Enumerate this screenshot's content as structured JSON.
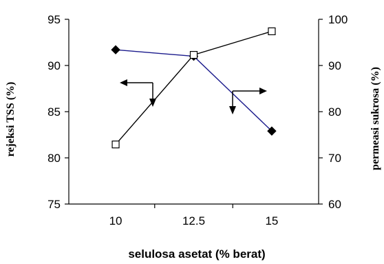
{
  "chart_data": {
    "type": "line",
    "title": "",
    "xlabel": "selulosa asetat (% berat)",
    "x": [
      10,
      12.5,
      15
    ],
    "x_tick_labels": [
      "10",
      "12.5",
      "15"
    ],
    "y_left": {
      "label": "rejeksi TSS (%)",
      "ylim": [
        75,
        95
      ],
      "ticks": [
        "75",
        "80",
        "85",
        "90",
        "95"
      ]
    },
    "y_right": {
      "label": "permeasi sukrosa (%)",
      "ylim": [
        60,
        100
      ],
      "ticks": [
        "60",
        "70",
        "80",
        "90",
        "100"
      ]
    },
    "series": [
      {
        "axis": "left",
        "marker": "filled-diamond",
        "color": "#1a1a8c",
        "values": [
          91.7,
          91.0,
          82.9
        ]
      },
      {
        "axis": "right",
        "marker": "open-square",
        "color": "#000000",
        "values": [
          72.9,
          92.3,
          97.4
        ]
      }
    ],
    "grid": false,
    "legend": "none"
  }
}
